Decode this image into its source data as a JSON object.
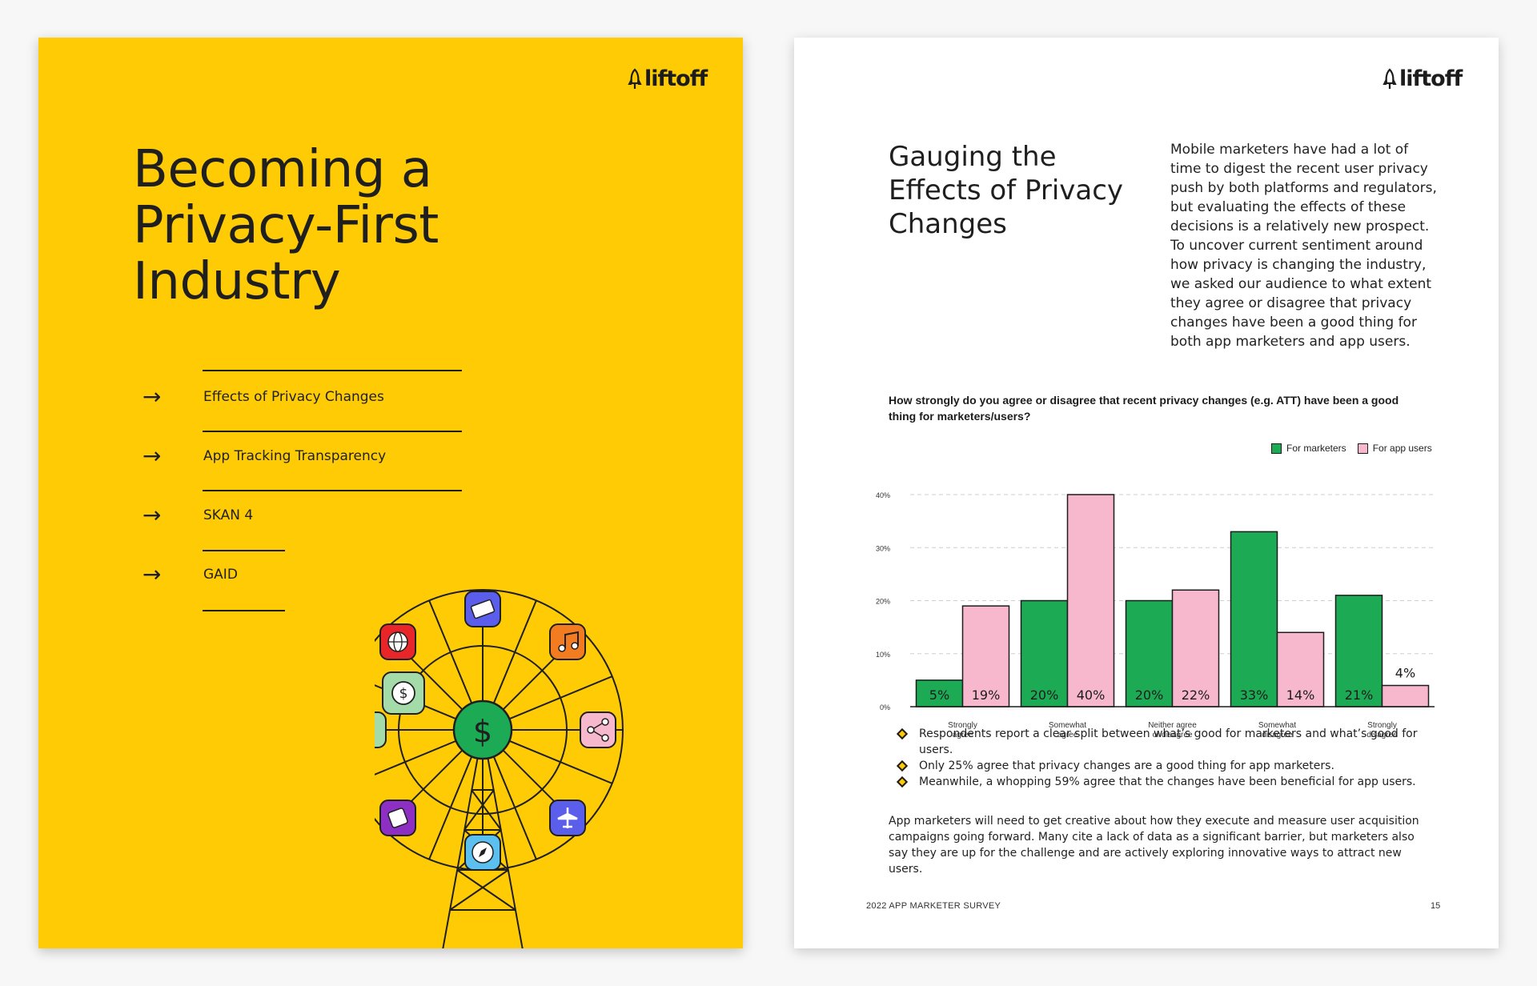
{
  "cover": {
    "logo": "liftoff",
    "title_lines": [
      "Becoming a",
      "Privacy-First",
      "Industry"
    ],
    "toc": [
      {
        "arrow": "→",
        "label": "Effects of Privacy Changes"
      },
      {
        "arrow": "→",
        "label": "App Tracking Transparency"
      },
      {
        "arrow": "→",
        "label": "SKAN 4"
      },
      {
        "arrow": "→",
        "label": "GAID"
      }
    ],
    "wheel_center_symbol": "$",
    "wheel_icons": [
      "ticket-icon",
      "music-icon",
      "share-icon",
      "airplane-icon",
      "compass-icon",
      "dice-icon",
      "dollar-icon",
      "globe-icon"
    ],
    "colors": {
      "background": "#FFCB05",
      "green": "#1DAA55"
    }
  },
  "page": {
    "logo": "liftoff",
    "title_lines": [
      "Gauging the",
      "Effects of Privacy",
      "Changes"
    ],
    "intro": "Mobile marketers have had a lot of time to digest the recent user privacy push by both platforms and regulators, but evaluating the effects of these decisions is a relatively new prospect. To uncover current sentiment around how privacy is changing the industry, we asked our audience to what extent they agree or disagree that privacy changes have been a good thing for both app marketers and app users.",
    "question": "How strongly do you agree or disagree that recent privacy changes (e.g. ATT) have been a good thing for marketers/users?",
    "bullets": [
      "Respondents report a clear split between what’s good for marketers and what’s good for users.",
      "Only 25% agree that privacy changes are a good thing for app marketers.",
      "Meanwhile, a whopping 59% agree that the changes have been beneficial for app users."
    ],
    "closing": "App marketers will need to get creative about how they execute and measure user acquisition campaigns going forward. Many cite a lack of data as a significant barrier, but marketers also say they are up for the challenge and are actively exploring innovative ways to attract new users.",
    "footer_left": "2022 APP MARKETER SURVEY",
    "footer_right": "15"
  },
  "chart_data": {
    "type": "bar",
    "title": "How strongly do you agree or disagree that recent privacy changes (e.g. ATT) have been a good thing for marketers/users?",
    "categories": [
      [
        "Strongly",
        "agree"
      ],
      [
        "Somewhat",
        "agree"
      ],
      [
        "Neither agree",
        "or disagree"
      ],
      [
        "Somewhat",
        "disagree"
      ],
      [
        "Strongly",
        "disagree"
      ]
    ],
    "series": [
      {
        "name": "For marketers",
        "color": "#1DAA55",
        "values": [
          5,
          20,
          20,
          33,
          21
        ],
        "labels": [
          "5%",
          "20%",
          "20%",
          "33%",
          "21%"
        ]
      },
      {
        "name": "For app users",
        "color": "#F7B8CE",
        "values": [
          19,
          40,
          22,
          14,
          4
        ],
        "labels": [
          "19%",
          "40%",
          "22%",
          "14%",
          "4%"
        ]
      }
    ],
    "ylim": [
      0,
      40
    ],
    "yticks": [
      "0%",
      "10%",
      "20%",
      "30%",
      "40%"
    ],
    "ytick_values": [
      0,
      10,
      20,
      30,
      40
    ],
    "grid": true,
    "legend": "top-right"
  }
}
